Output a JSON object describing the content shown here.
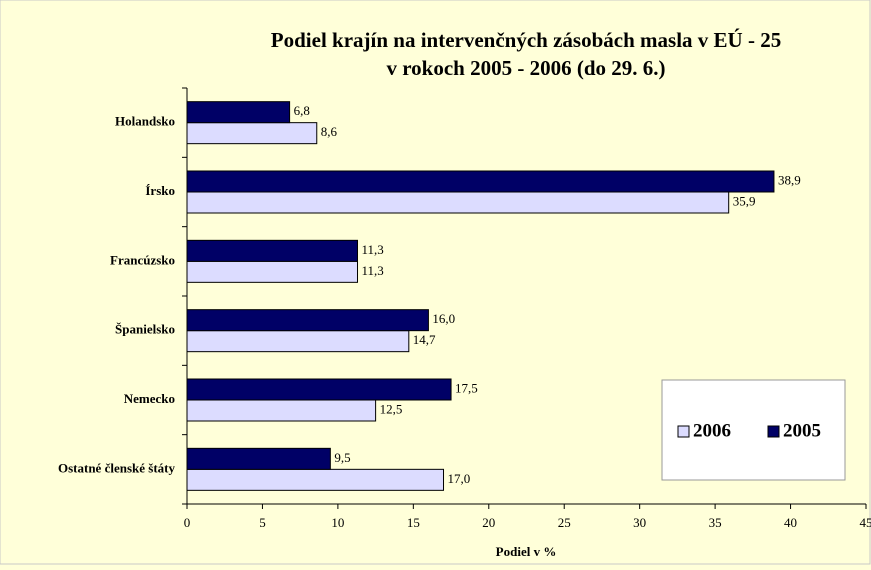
{
  "chart_data": {
    "type": "bar",
    "orientation": "horizontal",
    "title": [
      "Podiel krajín na intervenčných zásobách masla v EÚ - 25",
      "v rokoch 2005 - 2006 (do 29. 6.)"
    ],
    "x_label": "Podiel v %",
    "categories": [
      "Holandsko",
      "Írsko",
      "Francúzsko",
      "Španielsko",
      "Nemecko",
      "Ostatné členské štáty"
    ],
    "series": [
      {
        "name": "2006",
        "color": "#dcdcff",
        "values": [
          8.6,
          35.9,
          11.3,
          14.7,
          12.5,
          17.0
        ],
        "value_labels": [
          "8,6",
          "35,9",
          "11,3",
          "14,7",
          "12,5",
          "17,0"
        ]
      },
      {
        "name": "2005",
        "color": "#000066",
        "values": [
          6.8,
          38.9,
          11.3,
          16.0,
          17.5,
          9.5
        ],
        "value_labels": [
          "6,8",
          "38,9",
          "11,3",
          "16,0",
          "17,5",
          "9,5"
        ]
      }
    ],
    "xlim": [
      0,
      45
    ],
    "xticks": [
      0,
      5,
      10,
      15,
      20,
      25,
      30,
      35,
      40,
      45
    ],
    "legend": "lower right"
  }
}
